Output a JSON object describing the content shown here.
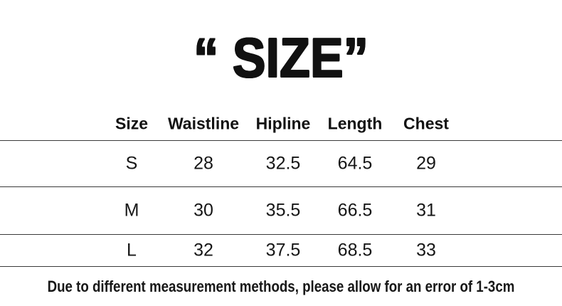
{
  "title": "“ SIZE”",
  "table": {
    "headers": [
      "Size",
      "Waistline",
      "Hipline",
      "Length",
      "Chest"
    ],
    "rows": [
      [
        "S",
        "28",
        "32.5",
        "64.5",
        "29"
      ],
      [
        "M",
        "30",
        "35.5",
        "66.5",
        "31"
      ],
      [
        "L",
        "32",
        "37.5",
        "68.5",
        "33"
      ]
    ]
  },
  "footer": {
    "note": "Due to different measurement methods, please allow for an error of 1-3cm"
  },
  "colors": {
    "background": "#ffffff",
    "text": "#111111",
    "separator_line": "#3a3a3a"
  }
}
